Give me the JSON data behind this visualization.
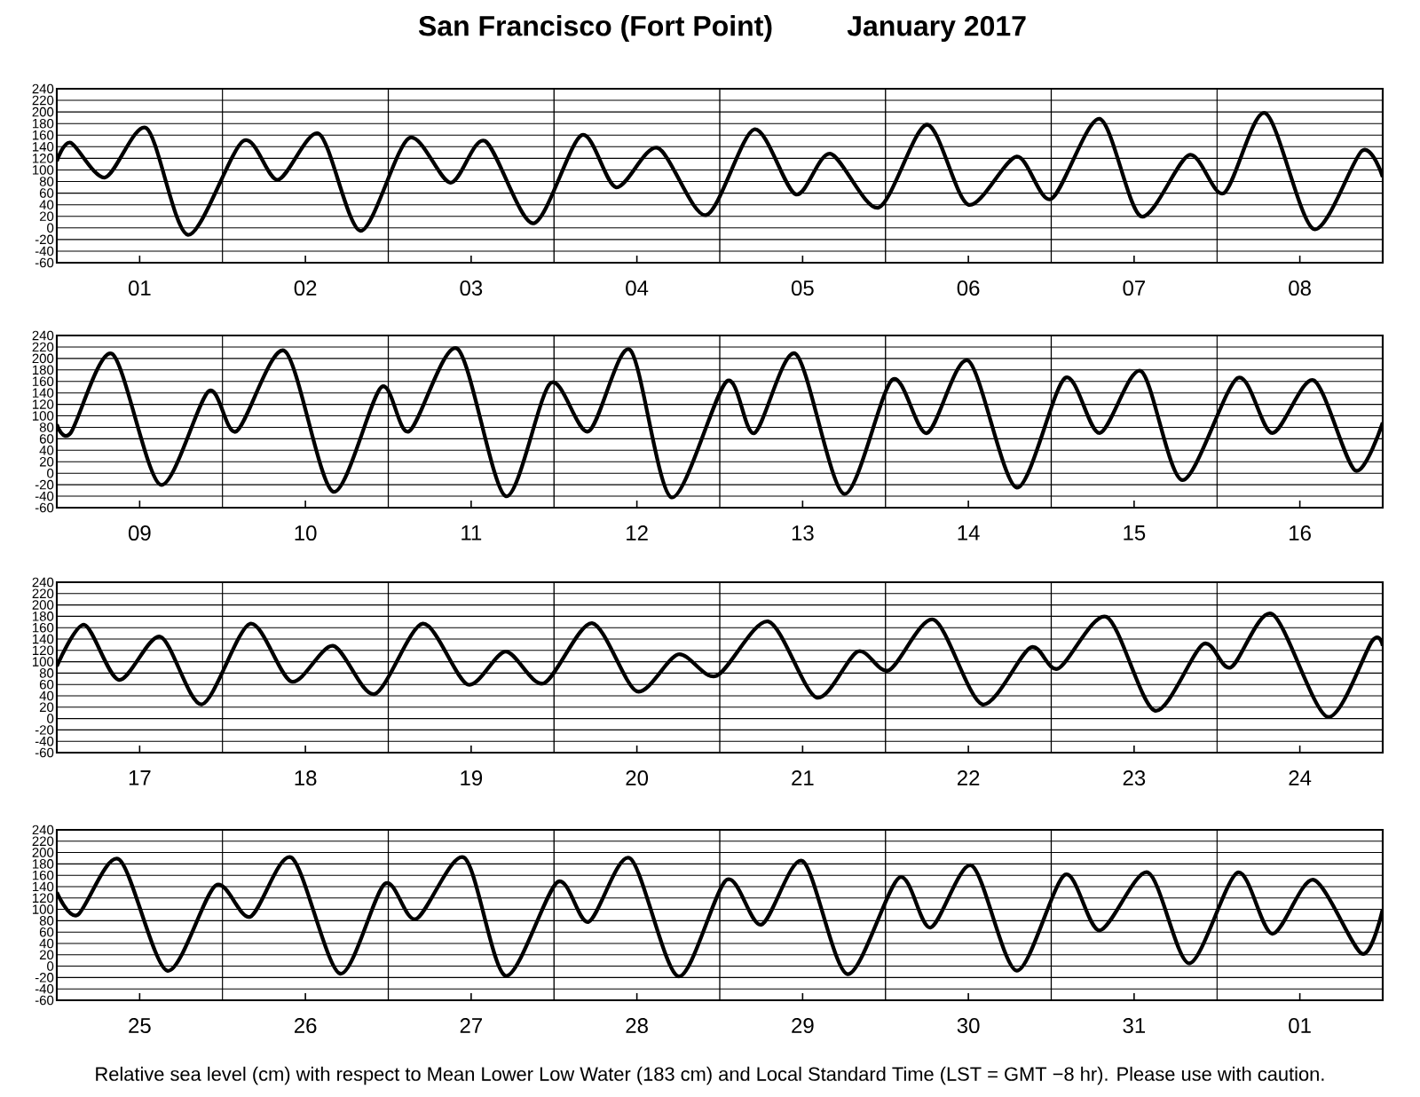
{
  "chart_data": [
    {
      "type": "line",
      "title": "San Francisco (Fort Point)",
      "subtitle": "January   2017",
      "color": "#000000",
      "xlim": [
        "2017-01-01T00:00",
        "2017-01-09T00:00"
      ],
      "ylim": [
        -60,
        240
      ],
      "grid": "y",
      "yticks": [
        -60,
        -40,
        -20,
        0,
        20,
        40,
        60,
        80,
        100,
        120,
        140,
        160,
        180,
        200,
        220,
        240
      ],
      "xticks": [
        {
          "value": "2017-01-01T12:00",
          "label": "01"
        },
        {
          "value": "2017-01-02T12:00",
          "label": "02"
        },
        {
          "value": "2017-01-03T12:00",
          "label": "03"
        },
        {
          "value": "2017-01-04T12:00",
          "label": "04"
        },
        {
          "value": "2017-01-05T12:00",
          "label": "05"
        },
        {
          "value": "2017-01-06T12:00",
          "label": "06"
        },
        {
          "value": "2017-01-07T12:00",
          "label": "07"
        },
        {
          "value": "2017-01-08T12:00",
          "label": "08"
        }
      ],
      "ref_lines": [
        {
          "axis": "x",
          "value": "2017-01-02T00:00",
          "color": "#000000"
        },
        {
          "axis": "x",
          "value": "2017-01-03T00:00",
          "color": "#000000"
        },
        {
          "axis": "x",
          "value": "2017-01-04T00:00",
          "color": "#000000"
        },
        {
          "axis": "x",
          "value": "2017-01-05T00:00",
          "color": "#000000"
        },
        {
          "axis": "x",
          "value": "2017-01-06T00:00",
          "color": "#000000"
        },
        {
          "axis": "x",
          "value": "2017-01-07T00:00",
          "color": "#000000"
        },
        {
          "axis": "x",
          "value": "2017-01-08T00:00",
          "color": "#000000"
        }
      ],
      "x": [
        "2017-01-01T00:00",
        "2017-01-01T02:00",
        "2017-01-01T07:00",
        "2017-01-01T13:00",
        "2017-01-01T19:00",
        "2017-01-02T03:00",
        "2017-01-02T08:00",
        "2017-01-02T14:00",
        "2017-01-02T20:00",
        "2017-01-03T03:00",
        "2017-01-03T09:00",
        "2017-01-03T14:00",
        "2017-01-03T21:00",
        "2017-01-04T04:00",
        "2017-01-04T09:00",
        "2017-01-04T15:00",
        "2017-01-04T22:00",
        "2017-01-05T05:00",
        "2017-01-05T11:00",
        "2017-01-05T16:00",
        "2017-01-05T23:00",
        "2017-01-06T06:00",
        "2017-01-06T12:00",
        "2017-01-06T19:00",
        "2017-01-07T00:00",
        "2017-01-07T07:00",
        "2017-01-07T13:00",
        "2017-01-07T20:00",
        "2017-01-08T01:00",
        "2017-01-08T07:00",
        "2017-01-08T14:00",
        "2017-01-08T21:00",
        "2017-01-09T00:00"
      ],
      "values": [
        115,
        147,
        87,
        172,
        -12,
        150,
        83,
        162,
        -5,
        155,
        78,
        150,
        8,
        160,
        70,
        138,
        22,
        170,
        58,
        128,
        35,
        178,
        40,
        123,
        50,
        188,
        20,
        126,
        60,
        198,
        -2,
        133,
        88
      ]
    },
    {
      "type": "line",
      "color": "#000000",
      "xlim": [
        "2017-01-09T00:00",
        "2017-01-17T00:00"
      ],
      "ylim": [
        -60,
        240
      ],
      "grid": "y",
      "yticks": [
        -60,
        -40,
        -20,
        0,
        20,
        40,
        60,
        80,
        100,
        120,
        140,
        160,
        180,
        200,
        220,
        240
      ],
      "xticks": [
        {
          "value": "2017-01-09T12:00",
          "label": "09"
        },
        {
          "value": "2017-01-10T12:00",
          "label": "10"
        },
        {
          "value": "2017-01-11T12:00",
          "label": "11"
        },
        {
          "value": "2017-01-12T12:00",
          "label": "12"
        },
        {
          "value": "2017-01-13T12:00",
          "label": "13"
        },
        {
          "value": "2017-01-14T12:00",
          "label": "14"
        },
        {
          "value": "2017-01-15T12:00",
          "label": "15"
        },
        {
          "value": "2017-01-16T12:00",
          "label": "16"
        }
      ],
      "ref_lines": [
        {
          "axis": "x",
          "value": "2017-01-10T00:00",
          "color": "#000000"
        },
        {
          "axis": "x",
          "value": "2017-01-11T00:00",
          "color": "#000000"
        },
        {
          "axis": "x",
          "value": "2017-01-12T00:00",
          "color": "#000000"
        },
        {
          "axis": "x",
          "value": "2017-01-13T00:00",
          "color": "#000000"
        },
        {
          "axis": "x",
          "value": "2017-01-14T00:00",
          "color": "#000000"
        },
        {
          "axis": "x",
          "value": "2017-01-15T00:00",
          "color": "#000000"
        },
        {
          "axis": "x",
          "value": "2017-01-16T00:00",
          "color": "#000000"
        }
      ],
      "x": [
        "2017-01-09T00:00",
        "2017-01-09T02:00",
        "2017-01-09T08:00",
        "2017-01-09T15:00",
        "2017-01-09T22:00",
        "2017-01-10T02:00",
        "2017-01-10T09:00",
        "2017-01-10T16:00",
        "2017-01-10T23:00",
        "2017-01-11T03:00",
        "2017-01-11T10:00",
        "2017-01-11T17:00",
        "2017-01-11T23:30",
        "2017-01-12T05:00",
        "2017-01-12T11:00",
        "2017-01-12T17:00",
        "2017-01-13T01:00",
        "2017-01-13T05:00",
        "2017-01-13T11:00",
        "2017-01-13T18:00",
        "2017-01-14T01:00",
        "2017-01-14T06:00",
        "2017-01-14T12:00",
        "2017-01-14T19:00",
        "2017-01-15T02:00",
        "2017-01-15T07:00",
        "2017-01-15T13:00",
        "2017-01-15T19:00",
        "2017-01-16T03:00",
        "2017-01-16T08:00",
        "2017-01-16T14:00",
        "2017-01-16T20:00",
        "2017-01-17T00:00"
      ],
      "values": [
        85,
        70,
        208,
        -20,
        143,
        73,
        213,
        -32,
        150,
        73,
        217,
        -40,
        157,
        73,
        215,
        -42,
        160,
        70,
        208,
        -36,
        163,
        70,
        196,
        -25,
        166,
        70,
        178,
        -12,
        166,
        70,
        162,
        5,
        88
      ]
    },
    {
      "type": "line",
      "color": "#000000",
      "xlim": [
        "2017-01-17T00:00",
        "2017-01-25T00:00"
      ],
      "ylim": [
        -60,
        240
      ],
      "grid": "y",
      "yticks": [
        -60,
        -40,
        -20,
        0,
        20,
        40,
        60,
        80,
        100,
        120,
        140,
        160,
        180,
        200,
        220,
        240
      ],
      "xticks": [
        {
          "value": "2017-01-17T12:00",
          "label": "17"
        },
        {
          "value": "2017-01-18T12:00",
          "label": "18"
        },
        {
          "value": "2017-01-19T12:00",
          "label": "19"
        },
        {
          "value": "2017-01-20T12:00",
          "label": "20"
        },
        {
          "value": "2017-01-21T12:00",
          "label": "21"
        },
        {
          "value": "2017-01-22T12:00",
          "label": "22"
        },
        {
          "value": "2017-01-23T12:00",
          "label": "23"
        },
        {
          "value": "2017-01-24T12:00",
          "label": "24"
        }
      ],
      "ref_lines": [
        {
          "axis": "x",
          "value": "2017-01-18T00:00",
          "color": "#000000"
        },
        {
          "axis": "x",
          "value": "2017-01-19T00:00",
          "color": "#000000"
        },
        {
          "axis": "x",
          "value": "2017-01-20T00:00",
          "color": "#000000"
        },
        {
          "axis": "x",
          "value": "2017-01-21T00:00",
          "color": "#000000"
        },
        {
          "axis": "x",
          "value": "2017-01-22T00:00",
          "color": "#000000"
        },
        {
          "axis": "x",
          "value": "2017-01-23T00:00",
          "color": "#000000"
        },
        {
          "axis": "x",
          "value": "2017-01-24T00:00",
          "color": "#000000"
        }
      ],
      "x": [
        "2017-01-17T00:00",
        "2017-01-17T04:00",
        "2017-01-17T09:00",
        "2017-01-17T15:00",
        "2017-01-17T21:00",
        "2017-01-18T04:00",
        "2017-01-18T10:00",
        "2017-01-18T16:00",
        "2017-01-18T22:00",
        "2017-01-19T05:00",
        "2017-01-19T11:30",
        "2017-01-19T17:00",
        "2017-01-19T22:30",
        "2017-01-20T05:30",
        "2017-01-20T12:00",
        "2017-01-20T18:00",
        "2017-01-20T23:30",
        "2017-01-21T07:00",
        "2017-01-21T14:00",
        "2017-01-21T20:00",
        "2017-01-22T00:30",
        "2017-01-22T07:00",
        "2017-01-22T14:00",
        "2017-01-22T21:00",
        "2017-01-23T01:00",
        "2017-01-23T08:00",
        "2017-01-23T15:00",
        "2017-01-23T22:00",
        "2017-01-24T02:00",
        "2017-01-24T08:00",
        "2017-01-24T16:00",
        "2017-01-24T22:30",
        "2017-01-25T00:00"
      ],
      "values": [
        92,
        165,
        68,
        144,
        25,
        167,
        65,
        128,
        43,
        167,
        60,
        118,
        62,
        168,
        48,
        113,
        75,
        171,
        37,
        118,
        85,
        174,
        25,
        125,
        88,
        179,
        14,
        131,
        90,
        184,
        3,
        137,
        128
      ]
    },
    {
      "type": "line",
      "color": "#000000",
      "xlim": [
        "2017-01-25T00:00",
        "2017-02-02T00:00"
      ],
      "ylim": [
        -60,
        240
      ],
      "grid": "y",
      "yticks": [
        -60,
        -40,
        -20,
        0,
        20,
        40,
        60,
        80,
        100,
        120,
        140,
        160,
        180,
        200,
        220,
        240
      ],
      "xticks": [
        {
          "value": "2017-01-25T12:00",
          "label": "25"
        },
        {
          "value": "2017-01-26T12:00",
          "label": "26"
        },
        {
          "value": "2017-01-27T12:00",
          "label": "27"
        },
        {
          "value": "2017-01-28T12:00",
          "label": "28"
        },
        {
          "value": "2017-01-29T12:00",
          "label": "29"
        },
        {
          "value": "2017-01-30T12:00",
          "label": "30"
        },
        {
          "value": "2017-01-31T12:00",
          "label": "31"
        },
        {
          "value": "2017-02-01T12:00",
          "label": "01"
        }
      ],
      "ref_lines": [
        {
          "axis": "x",
          "value": "2017-01-26T00:00",
          "color": "#000000"
        },
        {
          "axis": "x",
          "value": "2017-01-27T00:00",
          "color": "#000000"
        },
        {
          "axis": "x",
          "value": "2017-01-28T00:00",
          "color": "#000000"
        },
        {
          "axis": "x",
          "value": "2017-01-29T00:00",
          "color": "#000000"
        },
        {
          "axis": "x",
          "value": "2017-01-30T00:00",
          "color": "#000000"
        },
        {
          "axis": "x",
          "value": "2017-01-31T00:00",
          "color": "#000000"
        },
        {
          "axis": "x",
          "value": "2017-02-01T00:00",
          "color": "#000000"
        }
      ],
      "x": [
        "2017-01-25T00:00",
        "2017-01-25T03:00",
        "2017-01-25T09:00",
        "2017-01-25T16:00",
        "2017-01-25T23:00",
        "2017-01-26T04:00",
        "2017-01-26T10:00",
        "2017-01-26T17:00",
        "2017-01-26T23:30",
        "2017-01-27T04:00",
        "2017-01-27T11:00",
        "2017-01-27T17:00",
        "2017-01-28T00:30",
        "2017-01-28T05:00",
        "2017-01-28T11:00",
        "2017-01-28T18:00",
        "2017-01-29T01:00",
        "2017-01-29T06:00",
        "2017-01-29T12:00",
        "2017-01-29T18:30",
        "2017-01-30T02:00",
        "2017-01-30T06:30",
        "2017-01-30T12:30",
        "2017-01-30T19:00",
        "2017-01-31T02:00",
        "2017-01-31T07:00",
        "2017-01-31T14:00",
        "2017-01-31T20:00",
        "2017-02-01T03:00",
        "2017-02-01T08:00",
        "2017-02-01T14:00",
        "2017-02-01T21:00",
        "2017-02-02T00:00"
      ],
      "values": [
        130,
        90,
        188,
        -8,
        142,
        87,
        191,
        -13,
        145,
        83,
        191,
        -17,
        148,
        78,
        190,
        -18,
        152,
        73,
        185,
        -14,
        156,
        68,
        177,
        -8,
        161,
        63,
        165,
        5,
        165,
        57,
        152,
        22,
        100
      ],
      "annotations": [
        "Relative sea level (cm) with respect to Mean Lower Low Water (183 cm) and Local Standard Time (LST = GMT −8 hr). Please use with caution."
      ]
    }
  ]
}
